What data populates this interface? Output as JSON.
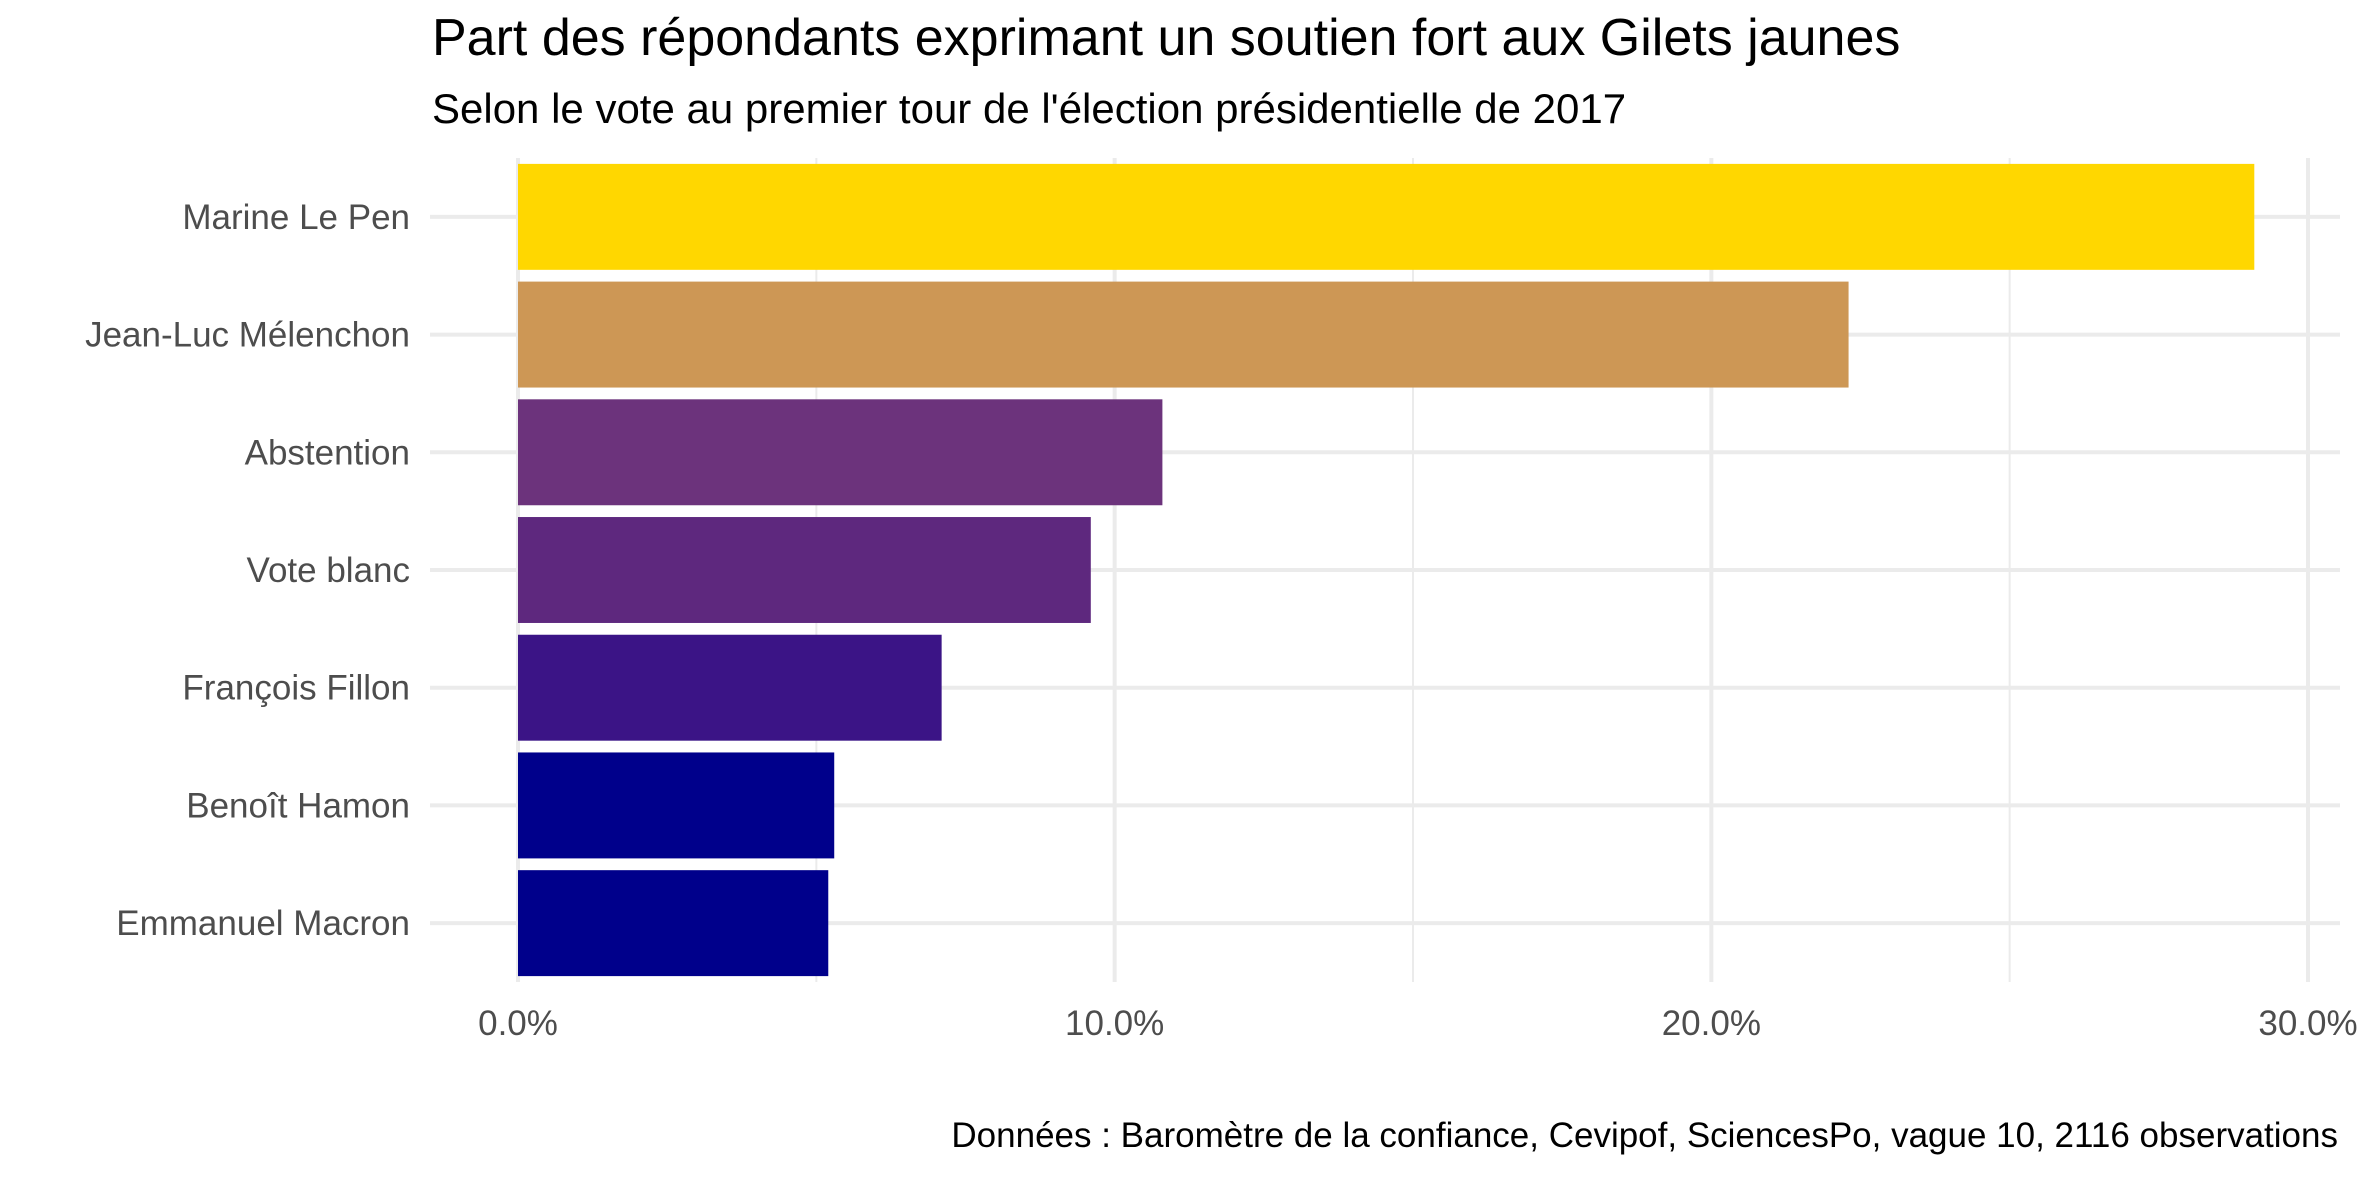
{
  "chart_data": {
    "type": "bar",
    "orientation": "horizontal",
    "title": "Part des répondants exprimant un soutien fort aux Gilets jaunes",
    "subtitle": "Selon le vote au premier tour de l'élection présidentielle de 2017",
    "caption": "Données : Baromètre de la confiance, Cevipof, SciencesPo, vague 10, 2116 observations",
    "xlabel": "",
    "ylabel": "",
    "xlim": [
      0,
      0.3
    ],
    "x_ticks": [
      0,
      0.1,
      0.2,
      0.3
    ],
    "x_tick_labels": [
      "0.0%",
      "10.0%",
      "20.0%",
      "30.0%"
    ],
    "grid": true,
    "legend": "none",
    "categories": [
      "Marine Le Pen",
      "Jean-Luc Mélenchon",
      "Abstention",
      "Vote blanc",
      "François Fillon",
      "Benoît Hamon",
      "Emmanuel Macron"
    ],
    "values": [
      0.291,
      0.223,
      0.108,
      0.096,
      0.071,
      0.053,
      0.052
    ],
    "colors": [
      "#FFD700",
      "#CD9755",
      "#6C337C",
      "#5E287E",
      "#3B1486",
      "#00008B",
      "#00008B"
    ]
  },
  "colors": {
    "grid": "#ebebeb",
    "tick_text": "#4d4d4d",
    "title_text": "#000000"
  }
}
